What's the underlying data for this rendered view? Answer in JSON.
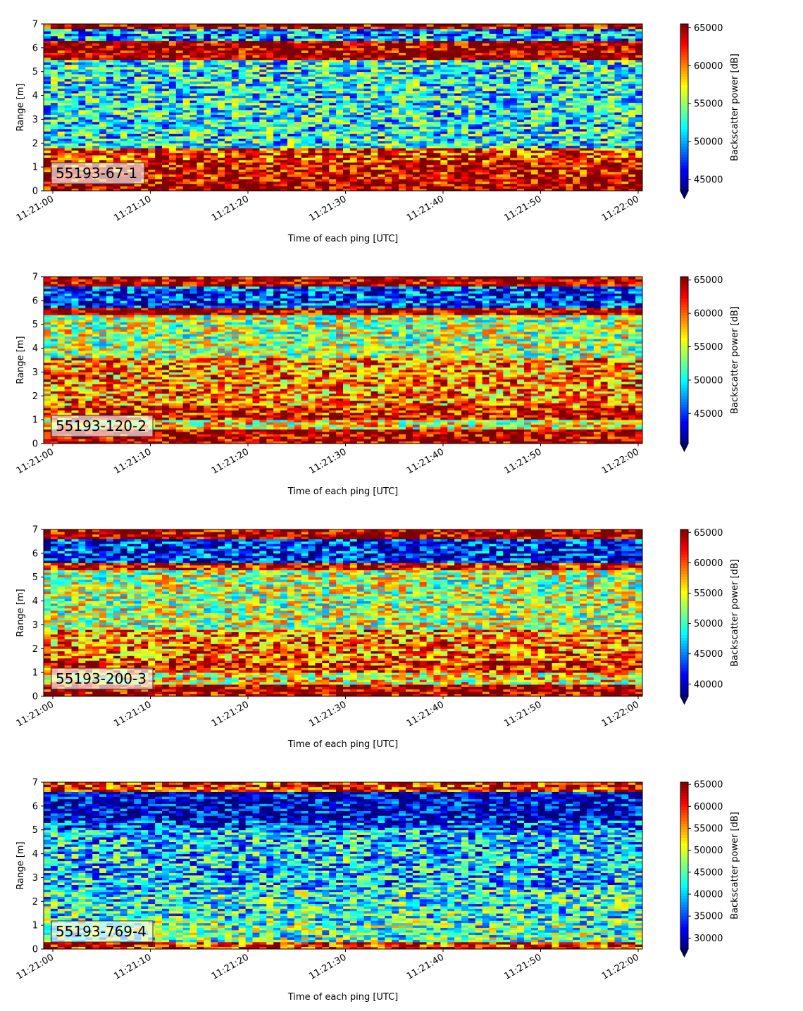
{
  "figure": {
    "colormap": "jet",
    "x_tick_labels": [
      "11:21:00",
      "11:21:10",
      "11:21:20",
      "11:21:30",
      "11:21:40",
      "11:21:50",
      "11:22:00"
    ],
    "y_tick_labels": [
      "0",
      "1",
      "2",
      "3",
      "4",
      "5",
      "6",
      "7"
    ]
  },
  "chart_data": [
    {
      "type": "heatmap",
      "label": "55193-67-1",
      "xlabel": "Time of each ping [UTC]",
      "ylabel": "Range [m]",
      "xlim": [
        "11:21:00",
        "11:22:00"
      ],
      "ylim": [
        0,
        7
      ],
      "colorbar_label": "Backscatter power [dB]",
      "colorbar_ticks": [
        "45000",
        "50000",
        "55000",
        "60000",
        "65000"
      ],
      "clim": [
        43500,
        65500
      ],
      "bands": [
        {
          "range": [
            0.0,
            0.3
          ],
          "value": 65000
        },
        {
          "range": [
            0.3,
            1.2
          ],
          "value": 64000
        },
        {
          "range": [
            1.2,
            1.8
          ],
          "value": 62000
        },
        {
          "range": [
            1.8,
            5.5
          ],
          "value": 52000
        },
        {
          "range": [
            5.5,
            6.3
          ],
          "value": 65000
        },
        {
          "range": [
            6.3,
            6.8
          ],
          "value": 50000
        },
        {
          "range": [
            6.8,
            7.0
          ],
          "value": 65000
        }
      ]
    },
    {
      "type": "heatmap",
      "label": "55193-120-2",
      "xlabel": "Time of each ping [UTC]",
      "ylabel": "Range [m]",
      "xlim": [
        "11:21:00",
        "11:22:00"
      ],
      "ylim": [
        0,
        7
      ],
      "colorbar_label": "Backscatter power [dB]",
      "colorbar_ticks": [
        "45000",
        "50000",
        "55000",
        "60000",
        "65000"
      ],
      "clim": [
        40500,
        65500
      ],
      "bands": [
        {
          "range": [
            0.0,
            0.6
          ],
          "value": 65000
        },
        {
          "range": [
            0.6,
            1.0
          ],
          "value": 56000
        },
        {
          "range": [
            1.0,
            1.6
          ],
          "value": 63000
        },
        {
          "range": [
            1.6,
            3.6
          ],
          "value": 59000
        },
        {
          "range": [
            3.6,
            5.4
          ],
          "value": 54000
        },
        {
          "range": [
            5.4,
            5.7
          ],
          "value": 65000
        },
        {
          "range": [
            5.7,
            6.6
          ],
          "value": 45000
        },
        {
          "range": [
            6.6,
            7.0
          ],
          "value": 65000
        }
      ]
    },
    {
      "type": "heatmap",
      "label": "55193-200-3",
      "xlabel": "Time of each ping [UTC]",
      "ylabel": "Range [m]",
      "xlim": [
        "11:21:00",
        "11:22:00"
      ],
      "ylim": [
        0,
        7
      ],
      "colorbar_label": "Backscatter power [dB]",
      "colorbar_ticks": [
        "40000",
        "45000",
        "50000",
        "55000",
        "60000",
        "65000"
      ],
      "clim": [
        38000,
        65500
      ],
      "bands": [
        {
          "range": [
            0.0,
            0.5
          ],
          "value": 65000
        },
        {
          "range": [
            0.5,
            1.0
          ],
          "value": 55000
        },
        {
          "range": [
            1.0,
            1.5
          ],
          "value": 62000
        },
        {
          "range": [
            1.5,
            2.8
          ],
          "value": 59000
        },
        {
          "range": [
            2.8,
            5.3
          ],
          "value": 53000
        },
        {
          "range": [
            5.3,
            5.6
          ],
          "value": 63000
        },
        {
          "range": [
            5.6,
            6.6
          ],
          "value": 42000
        },
        {
          "range": [
            6.6,
            7.0
          ],
          "value": 65000
        }
      ]
    },
    {
      "type": "heatmap",
      "label": "55193-769-4",
      "xlabel": "Time of each ping [UTC]",
      "ylabel": "Range [m]",
      "xlim": [
        "11:21:00",
        "11:22:00"
      ],
      "ylim": [
        0,
        7
      ],
      "colorbar_label": "Backscatter power [dB]",
      "colorbar_ticks": [
        "30000",
        "35000",
        "40000",
        "45000",
        "50000",
        "55000",
        "60000",
        "65000"
      ],
      "clim": [
        27500,
        65500
      ],
      "bands": [
        {
          "range": [
            0.0,
            0.35
          ],
          "value": 60000
        },
        {
          "range": [
            0.35,
            1.2
          ],
          "value": 45000
        },
        {
          "range": [
            1.2,
            2.5
          ],
          "value": 43000
        },
        {
          "range": [
            2.5,
            5.0
          ],
          "value": 40000
        },
        {
          "range": [
            5.0,
            5.4
          ],
          "value": 34000
        },
        {
          "range": [
            5.4,
            6.6
          ],
          "value": 30000
        },
        {
          "range": [
            6.6,
            7.0
          ],
          "value": 60000
        }
      ]
    }
  ]
}
